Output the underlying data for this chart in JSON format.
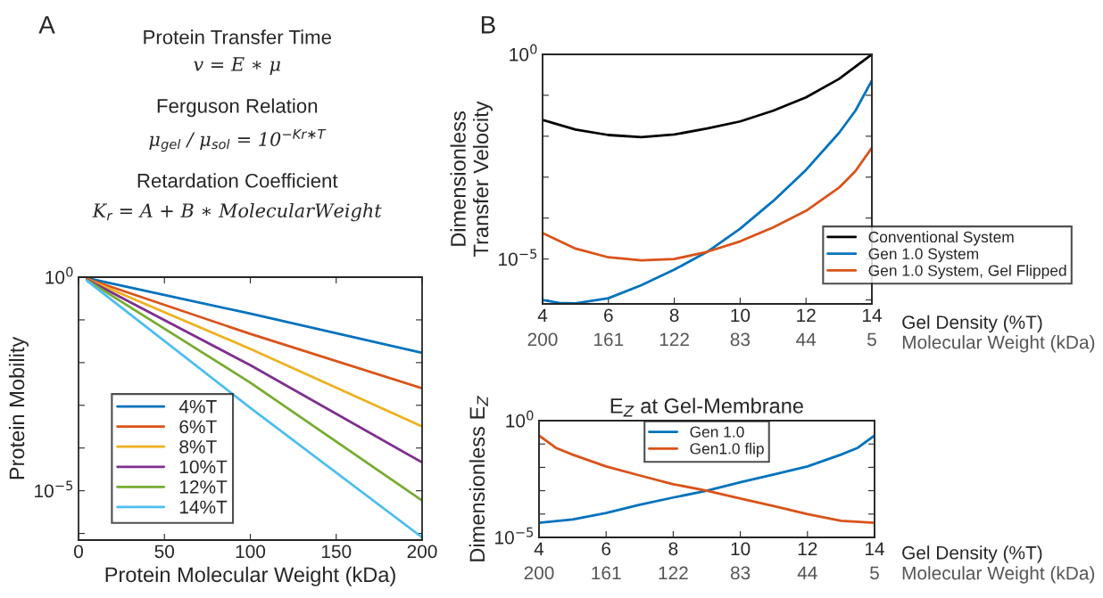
{
  "chart_data": [
    {
      "type": "line",
      "xlabel": "Protein Molecular Weight (kDa)",
      "ylabel": "Protein Mobility",
      "log": "y",
      "xlim": [
        0,
        200
      ],
      "xticks": [
        0,
        50,
        100,
        150,
        200
      ],
      "ylim": [
        7e-07,
        1
      ],
      "yticks": [
        {
          "value": 1,
          "label": "10$^{0}$"
        },
        {
          "value": 0.1,
          "label": null
        },
        {
          "value": 0.01,
          "label": null
        },
        {
          "value": 0.001,
          "label": null
        },
        {
          "value": 0.0001,
          "label": null
        },
        {
          "value": 1e-05,
          "label": "10$^{−5}$"
        },
        {
          "value": 1e-06,
          "label": null
        }
      ],
      "legend": "bottom left",
      "grid": false,
      "x": [
        5,
        100,
        200
      ],
      "series": [
        {
          "name": "4%T",
          "color": "#0072bd",
          "values": [
            0.95,
            0.14,
            0.017
          ]
        },
        {
          "name": "6%T",
          "color": "#d95319",
          "values": [
            0.92,
            0.047,
            0.0025
          ]
        },
        {
          "name": "8%T",
          "color": "#edb120",
          "values": [
            0.9,
            0.021,
            0.00032
          ]
        },
        {
          "name": "10%T",
          "color": "#7e2f8e",
          "values": [
            0.88,
            0.0087,
            4.6e-05
          ]
        },
        {
          "name": "12%T",
          "color": "#77ac30",
          "values": [
            0.85,
            0.0034,
            5.9e-06
          ]
        },
        {
          "name": "14%T",
          "color": "#4dbeee",
          "values": [
            0.82,
            0.00087,
            8.1e-07
          ]
        }
      ],
      "annotations": [
        "A",
        "Protein Transfer Time",
        "v = E ∗ μ",
        "Ferguson Relation",
        "μ$_{gel}$ / μ$_{sol}$ = 10$^{−Kr∗T}$",
        "Retardation Coefficient",
        "K$_{r}$ = A + B ∗ MolecularWeight"
      ]
    },
    {
      "type": "line",
      "ylabel": "Dimensionless\nTransfer Velocity",
      "xlabel": "Gel Density (%T)",
      "x2label": "Molecular Weight (kDa)",
      "log": "y",
      "xlim": [
        4,
        14
      ],
      "xticks": [
        4,
        6,
        8,
        10,
        12,
        14
      ],
      "x2lim": [
        200,
        5
      ],
      "x2ticks": [
        200,
        161,
        122,
        83,
        44,
        5
      ],
      "ylim": [
        8e-07,
        1
      ],
      "yticks": [
        {
          "value": 1,
          "label": "10$^{0}$"
        },
        {
          "value": 0.1,
          "label": null
        },
        {
          "value": 0.01,
          "label": null
        },
        {
          "value": 0.001,
          "label": null
        },
        {
          "value": 0.0001,
          "label": null
        },
        {
          "value": 1e-05,
          "label": "10$^{−5}$"
        },
        {
          "value": 1e-06,
          "label": null
        }
      ],
      "legend": "bottom right",
      "grid": false,
      "series": [
        {
          "name": "Conventional System",
          "color": "#000000",
          "x": [
            4,
            5,
            6,
            7,
            8,
            9,
            10,
            11,
            12,
            13,
            14
          ],
          "values": [
            0.025,
            0.0145,
            0.0107,
            0.0095,
            0.011,
            0.0155,
            0.023,
            0.042,
            0.089,
            0.25,
            1
          ]
        },
        {
          "name": "Gen 1.0 System",
          "color": "#0072bd",
          "x": [
            4,
            4.5,
            5,
            6,
            7,
            8,
            9,
            10,
            11,
            12,
            13,
            13.5,
            14
          ],
          "values": [
            1e-06,
            8.5e-07,
            8.3e-07,
            1.1e-06,
            2.3e-06,
            5.5e-06,
            1.5e-05,
            5.5e-05,
            0.00026,
            0.0015,
            0.012,
            0.042,
            0.23
          ]
        },
        {
          "name": "Gen 1.0 System, Gel Flipped",
          "color": "#d95319",
          "x": [
            4,
            5,
            6,
            7,
            8,
            9,
            10,
            11,
            12,
            13,
            13.5,
            14
          ],
          "values": [
            4.3e-05,
            1.8e-05,
            1.1e-05,
            9.3e-06,
            1e-05,
            1.5e-05,
            2.7e-05,
            5.9e-05,
            0.00015,
            0.00055,
            0.0014,
            0.0052
          ]
        }
      ],
      "annotations": [
        "B"
      ]
    },
    {
      "type": "line",
      "title": "E$_{Z}$ at Gel-Membrane",
      "ylabel": "Dimensionless E$_{Z}$",
      "xlabel": "Gel Density (%T)",
      "x2label": "Molecular Weight (kDa)",
      "log": "y",
      "xlim": [
        4,
        14
      ],
      "xticks": [
        4,
        6,
        8,
        10,
        12,
        14
      ],
      "x2lim": [
        200,
        5
      ],
      "x2ticks": [
        200,
        161,
        122,
        83,
        44,
        5
      ],
      "ylim": [
        1e-05,
        1
      ],
      "yticks": [
        {
          "value": 1,
          "label": "10$^{0}$"
        },
        {
          "value": 0.1,
          "label": null
        },
        {
          "value": 0.01,
          "label": null
        },
        {
          "value": 0.001,
          "label": null
        },
        {
          "value": 0.0001,
          "label": null
        },
        {
          "value": 1e-05,
          "label": "10$^{−5}$"
        }
      ],
      "legend": "top",
      "grid": false,
      "x": [
        4,
        5,
        6,
        7,
        8,
        9,
        10,
        11,
        12,
        13,
        13.5,
        14
      ],
      "series": [
        {
          "name": "Gen 1.0",
          "color": "#0072bd",
          "values": [
            4.2e-05,
            5.9e-05,
            0.00011,
            0.00025,
            0.00051,
            0.001,
            0.0023,
            0.005,
            0.011,
            0.035,
            0.069,
            0.23
          ]
        },
        {
          "name": "Gen1.0 flip",
          "color": "#d95319",
          "x": [
            4,
            4.5,
            5,
            6,
            7,
            8,
            9,
            10,
            11,
            12,
            13,
            14
          ],
          "values": [
            0.23,
            0.069,
            0.035,
            0.011,
            0.0045,
            0.0019,
            0.001,
            0.00046,
            0.00022,
            0.0001,
            5.1e-05,
            4.2e-05
          ]
        }
      ]
    }
  ]
}
